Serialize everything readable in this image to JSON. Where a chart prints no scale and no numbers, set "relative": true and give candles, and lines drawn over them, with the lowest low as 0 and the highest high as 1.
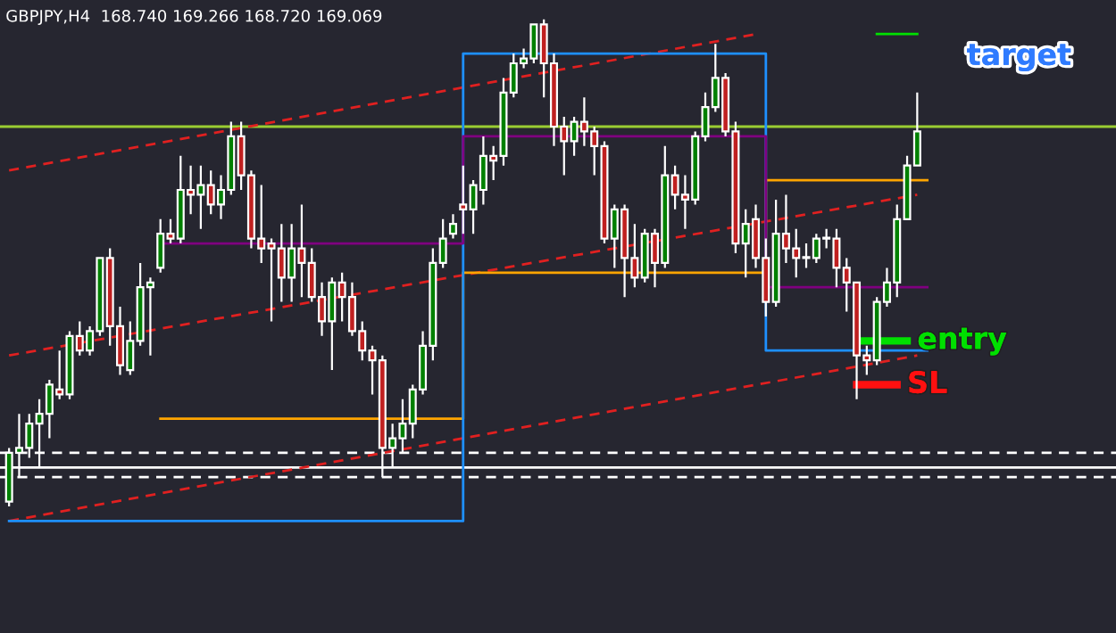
{
  "chart_data": {
    "type": "candlestick",
    "title": "GBPJPY,H4  168.740 169.266 168.720 169.069",
    "relative": true,
    "categories": [
      null,
      null,
      null,
      null,
      null,
      null,
      null,
      null,
      null,
      null,
      null,
      null,
      null,
      null,
      null,
      null,
      null,
      null,
      null,
      null,
      null,
      null,
      null,
      null,
      null,
      null,
      null,
      null,
      null,
      null,
      null,
      null,
      null,
      null,
      null,
      null,
      null,
      null,
      null,
      null,
      null,
      null,
      null,
      null,
      null,
      null,
      null,
      null,
      null,
      null,
      null,
      null,
      null,
      null,
      null,
      null,
      null,
      null,
      null,
      null,
      null,
      null,
      null,
      null,
      null,
      null,
      null,
      null,
      null,
      null,
      null,
      null,
      null,
      null,
      null,
      null,
      null,
      null,
      null,
      null,
      null,
      null,
      null,
      null,
      null,
      null,
      null,
      null,
      null,
      null,
      null
    ],
    "ohlc": [
      [
        0.01,
        0.12,
        0,
        0.11
      ],
      [
        0.11,
        0.19,
        0.06,
        0.12
      ],
      [
        0.12,
        0.19,
        0.1,
        0.17
      ],
      [
        0.17,
        0.22,
        0.08,
        0.19
      ],
      [
        0.19,
        0.26,
        0.14,
        0.25
      ],
      [
        0.24,
        0.32,
        0.22,
        0.23
      ],
      [
        0.23,
        0.36,
        0.22,
        0.35
      ],
      [
        0.35,
        0.38,
        0.31,
        0.32
      ],
      [
        0.32,
        0.37,
        0.31,
        0.36
      ],
      [
        0.36,
        0.51,
        0.35,
        0.51
      ],
      [
        0.51,
        0.53,
        0.33,
        0.37
      ],
      [
        0.37,
        0.41,
        0.27,
        0.29
      ],
      [
        0.28,
        0.38,
        0.27,
        0.34
      ],
      [
        0.34,
        0.5,
        0.33,
        0.45
      ],
      [
        0.45,
        0.47,
        0.31,
        0.46
      ],
      [
        0.49,
        0.59,
        0.48,
        0.56
      ],
      [
        0.56,
        0.59,
        0.54,
        0.55
      ],
      [
        0.55,
        0.72,
        0.54,
        0.65
      ],
      [
        0.65,
        0.7,
        0.6,
        0.64
      ],
      [
        0.64,
        0.7,
        0.57,
        0.66
      ],
      [
        0.66,
        0.69,
        0.6,
        0.62
      ],
      [
        0.62,
        0.68,
        0.59,
        0.65
      ],
      [
        0.65,
        0.79,
        0.64,
        0.76
      ],
      [
        0.76,
        0.79,
        0.65,
        0.68
      ],
      [
        0.68,
        0.69,
        0.53,
        0.55
      ],
      [
        0.55,
        0.66,
        0.5,
        0.53
      ],
      [
        0.54,
        0.55,
        0.38,
        0.53
      ],
      [
        0.53,
        0.58,
        0.42,
        0.47
      ],
      [
        0.47,
        0.58,
        0.42,
        0.53
      ],
      [
        0.53,
        0.62,
        0.43,
        0.5
      ],
      [
        0.5,
        0.53,
        0.42,
        0.43
      ],
      [
        0.43,
        0.46,
        0.35,
        0.38
      ],
      [
        0.38,
        0.47,
        0.28,
        0.46
      ],
      [
        0.46,
        0.48,
        0.38,
        0.43
      ],
      [
        0.43,
        0.46,
        0.35,
        0.36
      ],
      [
        0.36,
        0.38,
        0.3,
        0.32
      ],
      [
        0.32,
        0.33,
        0.23,
        0.3
      ],
      [
        0.3,
        0.31,
        0.06,
        0.12
      ],
      [
        0.12,
        0.17,
        0.08,
        0.14
      ],
      [
        0.14,
        0.22,
        0.11,
        0.17
      ],
      [
        0.17,
        0.25,
        0.14,
        0.24
      ],
      [
        0.24,
        0.36,
        0.23,
        0.33
      ],
      [
        0.33,
        0.53,
        0.3,
        0.5
      ],
      [
        0.5,
        0.59,
        0.49,
        0.55
      ],
      [
        0.56,
        0.6,
        0.55,
        0.58
      ],
      [
        0.62,
        0.7,
        0.56,
        0.61
      ],
      [
        0.61,
        0.67,
        0.56,
        0.66
      ],
      [
        0.65,
        0.76,
        0.62,
        0.72
      ],
      [
        0.72,
        0.74,
        0.67,
        0.71
      ],
      [
        0.72,
        0.88,
        0.7,
        0.85
      ],
      [
        0.85,
        0.93,
        0.84,
        0.91
      ],
      [
        0.91,
        0.94,
        0.9,
        0.92
      ],
      [
        0.92,
        0.99,
        0.91,
        0.99
      ],
      [
        0.99,
        1.0,
        0.84,
        0.91
      ],
      [
        0.91,
        0.93,
        0.74,
        0.78
      ],
      [
        0.78,
        0.8,
        0.68,
        0.75
      ],
      [
        0.75,
        0.8,
        0.72,
        0.79
      ],
      [
        0.79,
        0.84,
        0.74,
        0.77
      ],
      [
        0.77,
        0.78,
        0.68,
        0.74
      ],
      [
        0.74,
        0.75,
        0.54,
        0.55
      ],
      [
        0.55,
        0.62,
        0.49,
        0.61
      ],
      [
        0.61,
        0.62,
        0.43,
        0.51
      ],
      [
        0.51,
        0.58,
        0.45,
        0.47
      ],
      [
        0.47,
        0.57,
        0.46,
        0.56
      ],
      [
        0.56,
        0.57,
        0.45,
        0.5
      ],
      [
        0.5,
        0.74,
        0.49,
        0.68
      ],
      [
        0.68,
        0.7,
        0.61,
        0.64
      ],
      [
        0.64,
        0.68,
        0.57,
        0.63
      ],
      [
        0.63,
        0.77,
        0.62,
        0.76
      ],
      [
        0.76,
        0.85,
        0.75,
        0.82
      ],
      [
        0.82,
        0.95,
        0.81,
        0.88
      ],
      [
        0.88,
        0.89,
        0.76,
        0.77
      ],
      [
        0.77,
        0.79,
        0.52,
        0.54
      ],
      [
        0.54,
        0.61,
        0.47,
        0.58
      ],
      [
        0.59,
        0.62,
        0.49,
        0.51
      ],
      [
        0.51,
        0.55,
        0.39,
        0.42
      ],
      [
        0.42,
        0.63,
        0.41,
        0.56
      ],
      [
        0.56,
        0.64,
        0.5,
        0.53
      ],
      [
        0.53,
        0.57,
        0.47,
        0.51
      ],
      [
        0.51,
        0.54,
        0.49,
        0.51
      ],
      [
        0.51,
        0.56,
        0.5,
        0.55
      ],
      [
        0.55,
        0.57,
        0.53,
        0.55
      ],
      [
        0.55,
        0.57,
        0.45,
        0.49
      ],
      [
        0.49,
        0.51,
        0.4,
        0.46
      ],
      [
        0.46,
        0.46,
        0.22,
        0.31
      ],
      [
        0.31,
        0.33,
        0.27,
        0.3
      ],
      [
        0.3,
        0.43,
        0.29,
        0.42
      ],
      [
        0.42,
        0.49,
        0.41,
        0.46
      ],
      [
        0.46,
        0.62,
        0.43,
        0.59
      ],
      [
        0.59,
        0.72,
        0.59,
        0.7
      ],
      [
        0.7,
        0.85,
        0.7,
        0.77
      ]
    ],
    "series": [
      {
        "type": "line",
        "color": "#e02020",
        "line_style": "dashed",
        "values": [
          -0.03,
          null,
          null,
          null,
          null,
          null,
          null,
          null,
          null,
          null,
          null,
          null,
          null,
          null,
          null,
          null,
          null,
          null,
          null,
          null,
          null,
          null,
          null,
          null,
          null,
          null,
          null,
          null,
          null,
          null,
          null,
          null,
          null,
          null,
          null,
          null,
          null,
          null,
          null,
          null,
          null,
          null,
          null,
          null,
          null,
          null,
          null,
          null,
          null,
          null,
          null,
          null,
          null,
          null,
          null,
          null,
          null,
          null,
          null,
          null,
          null,
          null,
          null,
          null,
          null,
          null,
          null,
          null,
          null,
          null,
          null,
          null,
          null,
          null,
          null,
          null,
          null,
          null,
          null,
          null,
          null,
          null,
          null,
          null,
          null,
          null,
          null,
          null,
          null,
          null,
          0.31
        ]
      },
      {
        "type": "line",
        "color": "#e02020",
        "line_style": "dashed",
        "values": [
          0.31,
          null,
          null,
          null,
          null,
          null,
          null,
          null,
          null,
          null,
          null,
          null,
          null,
          null,
          null,
          null,
          null,
          null,
          null,
          null,
          null,
          null,
          null,
          null,
          null,
          null,
          null,
          null,
          null,
          null,
          null,
          null,
          null,
          null,
          null,
          null,
          null,
          null,
          null,
          null,
          null,
          null,
          null,
          null,
          null,
          null,
          null,
          null,
          null,
          null,
          null,
          null,
          null,
          null,
          null,
          null,
          null,
          null,
          null,
          null,
          null,
          null,
          null,
          null,
          null,
          null,
          null,
          null,
          null,
          null,
          null,
          null,
          null,
          null,
          null,
          null,
          null,
          null,
          null,
          null,
          null,
          null,
          null,
          null,
          null,
          null,
          null,
          null,
          null,
          null,
          0.64
        ]
      },
      {
        "type": "line",
        "color": "#e02020",
        "line_style": "dashed",
        "values": [
          0.69,
          null,
          null,
          null,
          null,
          null,
          null,
          null,
          null,
          null,
          null,
          null,
          null,
          null,
          null,
          null,
          null,
          null,
          null,
          null,
          null,
          null,
          null,
          null,
          null,
          null,
          null,
          null,
          null,
          null,
          null,
          null,
          null,
          null,
          null,
          null,
          null,
          null,
          null,
          null,
          null,
          null,
          null,
          null,
          null,
          null,
          null,
          null,
          null,
          null,
          null,
          null,
          null,
          null,
          null,
          null,
          null,
          null,
          null,
          null,
          null,
          null,
          null,
          null,
          null,
          null,
          null,
          null,
          null,
          null,
          null,
          null,
          null,
          null,
          0.97,
          null,
          null,
          null,
          null,
          null,
          null,
          null,
          null,
          null,
          null,
          null,
          null,
          null,
          null,
          null,
          null
        ]
      },
      {
        "type": "step",
        "color": "#ffa500",
        "values": [
          null,
          null,
          null,
          null,
          null,
          null,
          null,
          null,
          null,
          null,
          null,
          null,
          null,
          null,
          null,
          0.18,
          0.18,
          0.18,
          0.18,
          0.18,
          0.18,
          0.18,
          0.18,
          0.18,
          0.18,
          0.18,
          0.18,
          0.18,
          0.18,
          0.18,
          0.18,
          0.18,
          0.18,
          0.18,
          0.18,
          0.18,
          0.18,
          0.18,
          0.18,
          0.18,
          0.18,
          0.18,
          0.18,
          0.18,
          0.18,
          0.48,
          0.48,
          0.48,
          0.48,
          0.48,
          0.48,
          0.48,
          0.48,
          0.48,
          0.48,
          0.48,
          0.48,
          0.48,
          0.48,
          0.48,
          0.48,
          0.48,
          0.48,
          0.48,
          0.48,
          0.48,
          0.48,
          0.48,
          0.48,
          0.48,
          0.48,
          0.48,
          0.48,
          0.48,
          0.48,
          0.67,
          0.67,
          0.67,
          0.67,
          0.67,
          0.67,
          0.67,
          0.67,
          0.67,
          0.67,
          0.67,
          0.67,
          0.67,
          0.67,
          0.67,
          0.67
        ]
      },
      {
        "type": "step",
        "color": "#1e90ff",
        "values": [
          -0.03,
          -0.03,
          -0.03,
          -0.03,
          -0.03,
          -0.03,
          -0.03,
          -0.03,
          -0.03,
          -0.03,
          -0.03,
          -0.03,
          -0.03,
          -0.03,
          -0.03,
          -0.03,
          -0.03,
          -0.03,
          -0.03,
          -0.03,
          -0.03,
          -0.03,
          -0.03,
          -0.03,
          -0.03,
          -0.03,
          -0.03,
          -0.03,
          -0.03,
          -0.03,
          -0.03,
          -0.03,
          -0.03,
          -0.03,
          -0.03,
          -0.03,
          -0.03,
          -0.03,
          -0.03,
          -0.03,
          -0.03,
          -0.03,
          -0.03,
          -0.03,
          -0.03,
          0.93,
          0.93,
          0.93,
          0.93,
          0.93,
          0.93,
          0.93,
          0.93,
          0.93,
          0.93,
          0.93,
          0.93,
          0.93,
          0.93,
          0.93,
          0.93,
          0.93,
          0.93,
          0.93,
          0.93,
          0.93,
          0.93,
          0.93,
          0.93,
          0.93,
          0.93,
          0.93,
          0.93,
          0.93,
          0.93,
          0.32,
          0.32,
          0.32,
          0.32,
          0.32,
          0.32,
          0.32,
          0.32,
          0.32,
          0.32,
          0.32,
          0.32,
          0.32,
          0.32,
          0.32,
          0.32
        ]
      },
      {
        "type": "step",
        "color": "#800080",
        "values": [
          null,
          null,
          null,
          null,
          null,
          null,
          null,
          null,
          null,
          null,
          null,
          null,
          null,
          null,
          null,
          0.54,
          0.54,
          0.54,
          0.54,
          0.54,
          0.54,
          0.54,
          0.54,
          0.54,
          0.54,
          0.54,
          0.54,
          0.54,
          0.54,
          0.54,
          0.54,
          0.54,
          0.54,
          0.54,
          0.54,
          0.54,
          0.54,
          0.54,
          0.54,
          0.54,
          0.54,
          0.54,
          0.54,
          0.54,
          0.54,
          0.76,
          0.76,
          0.76,
          0.76,
          0.76,
          0.76,
          0.76,
          0.76,
          0.76,
          0.76,
          0.76,
          0.76,
          0.76,
          0.76,
          0.76,
          0.76,
          0.76,
          0.76,
          0.76,
          0.76,
          0.76,
          0.76,
          0.76,
          0.76,
          0.76,
          0.76,
          0.76,
          0.76,
          0.76,
          0.76,
          0.45,
          0.45,
          0.45,
          0.45,
          0.45,
          0.45,
          0.45,
          0.45,
          0.45,
          0.45,
          0.45,
          0.45,
          0.45,
          0.45,
          0.45,
          0.45
        ]
      },
      {
        "type": "line",
        "color": "#00e000",
        "values": [
          null,
          null,
          null,
          null,
          null,
          null,
          null,
          null,
          null,
          null,
          null,
          null,
          null,
          null,
          null,
          null,
          null,
          null,
          null,
          null,
          null,
          null,
          null,
          null,
          null,
          null,
          null,
          null,
          null,
          null,
          null,
          null,
          null,
          null,
          null,
          null,
          null,
          null,
          null,
          null,
          null,
          null,
          null,
          null,
          null,
          null,
          null,
          null,
          null,
          null,
          null,
          null,
          null,
          null,
          null,
          null,
          null,
          null,
          null,
          null,
          null,
          null,
          null,
          null,
          null,
          null,
          null,
          null,
          null,
          null,
          null,
          null,
          null,
          null,
          null,
          null,
          null,
          null,
          null,
          null,
          null,
          null,
          null,
          null,
          null,
          null,
          0.97,
          null,
          null,
          null,
          0.97
        ]
      },
      {
        "type": "line",
        "name": "entry",
        "color": "#00e000",
        "values": [
          null,
          null,
          null,
          null,
          null,
          null,
          null,
          null,
          null,
          null,
          null,
          null,
          null,
          null,
          null,
          null,
          null,
          null,
          null,
          null,
          null,
          null,
          null,
          null,
          null,
          null,
          null,
          null,
          null,
          null,
          null,
          null,
          null,
          null,
          null,
          null,
          null,
          null,
          null,
          null,
          null,
          null,
          null,
          null,
          null,
          null,
          null,
          null,
          null,
          null,
          null,
          null,
          null,
          null,
          null,
          null,
          null,
          null,
          null,
          null,
          null,
          null,
          null,
          null,
          null,
          null,
          null,
          null,
          null,
          null,
          null,
          null,
          null,
          null,
          null,
          null,
          null,
          null,
          null,
          null,
          null,
          null,
          null,
          null,
          0.34,
          null,
          null,
          null,
          null,
          0.34,
          null
        ]
      },
      {
        "type": "line",
        "name": "SL",
        "color": "#ff1010",
        "values": [
          null,
          null,
          null,
          null,
          null,
          null,
          null,
          null,
          null,
          null,
          null,
          null,
          null,
          null,
          null,
          null,
          null,
          null,
          null,
          null,
          null,
          null,
          null,
          null,
          null,
          null,
          null,
          null,
          null,
          null,
          null,
          null,
          null,
          null,
          null,
          null,
          null,
          null,
          null,
          null,
          null,
          null,
          null,
          null,
          null,
          null,
          null,
          null,
          null,
          null,
          null,
          null,
          null,
          null,
          null,
          null,
          null,
          null,
          null,
          null,
          null,
          null,
          null,
          null,
          null,
          null,
          null,
          null,
          null,
          null,
          null,
          null,
          null,
          null,
          null,
          null,
          null,
          null,
          null,
          null,
          null,
          null,
          null,
          null,
          0.25,
          null,
          null,
          null,
          0.25,
          null,
          null
        ]
      }
    ],
    "annotations": [
      "target"
    ],
    "ref_lines": [
      {
        "axis": "y",
        "value": 0.78,
        "color": "#9acd32",
        "line_style": "solid"
      },
      {
        "axis": "y",
        "value": 0.11,
        "color": "#ffffff",
        "line_style": "dashed"
      },
      {
        "axis": "y",
        "value": 0.08,
        "color": "#ffffff",
        "line_style": "solid"
      },
      {
        "axis": "y",
        "value": 0.06,
        "color": "#ffffff",
        "line_style": "dashed"
      }
    ]
  }
}
